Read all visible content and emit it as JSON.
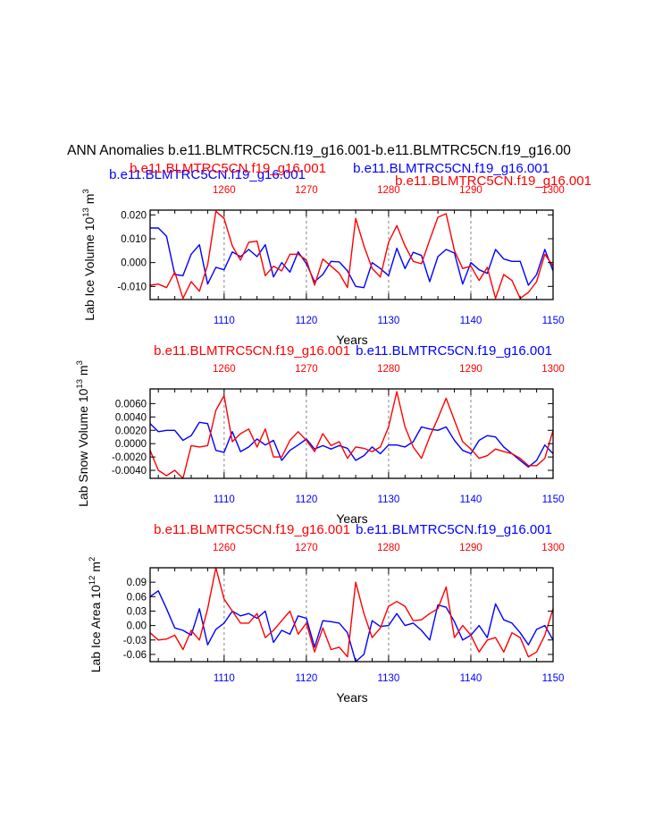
{
  "figure": {
    "title": "ANN Anomalies b.e11.BLMTRC5CN.f19_g16.001-b.e11.BLMTRC5CN.f19_g16.00"
  },
  "colors": {
    "series_a": "#0000ff",
    "series_b": "#ff0000",
    "axis": "#000000",
    "grid": "#9a9a9a"
  },
  "chart_data": [
    {
      "type": "line",
      "ylabel": "Lab Ice Volume 10",
      "ylabel_exp": "13",
      "ylabel_unit": " m",
      "ylabel_unit_exp": "3",
      "xlabel": "Years",
      "bottom_axis_ticks": [
        "1110",
        "1120",
        "1130",
        "1140",
        "1150"
      ],
      "top_axis_ticks": [
        "1260",
        "1270",
        "1280",
        "1290",
        "1300"
      ],
      "top_titles": [
        "b.e11.BLMTRC5CN.f19_g16.001",
        "b.e11.BLMTRC5CN.f19_g16.001",
        "b.e11.BLMTRC5CN.f19_g16.001",
        "b.e11.BLMTRC5CN.f19_g16.001"
      ],
      "ylim": [
        -0.0155,
        0.022
      ],
      "yticks": [
        -0.01,
        0.0,
        0.01,
        0.02
      ],
      "ytick_labels": [
        "-0.010",
        "0.000",
        "0.010",
        "0.020"
      ],
      "xlim": [
        1101,
        1150
      ],
      "grid_x": [
        1110,
        1120,
        1130,
        1140
      ],
      "series": [
        {
          "name": "b.e11.BLMTRC5CN.f19_g16.001",
          "color": "#0000ff",
          "x": [
            1101,
            1102,
            1103,
            1104,
            1105,
            1106,
            1107,
            1108,
            1109,
            1110,
            1111,
            1112,
            1113,
            1114,
            1115,
            1116,
            1117,
            1118,
            1119,
            1120,
            1121,
            1122,
            1123,
            1124,
            1125,
            1126,
            1127,
            1128,
            1129,
            1130,
            1131,
            1132,
            1133,
            1134,
            1135,
            1136,
            1137,
            1138,
            1139,
            1140,
            1141,
            1142,
            1143,
            1144,
            1145,
            1146,
            1147,
            1148,
            1149,
            1150
          ],
          "values": [
            0.0145,
            0.0145,
            0.011,
            -0.005,
            -0.0055,
            0.0035,
            0.0075,
            -0.009,
            -0.002,
            -0.003,
            0.0045,
            0.0025,
            0.0055,
            0.0025,
            0.0075,
            -0.006,
            0.0,
            -0.004,
            0.0045,
            -0.0005,
            -0.008,
            -0.005,
            0.0005,
            0.0003,
            -0.0035,
            -0.01,
            -0.0105,
            0.0,
            -0.0025,
            -0.0055,
            0.006,
            -0.0025,
            0.0043,
            0.003,
            -0.008,
            0.0025,
            0.0055,
            0.004,
            -0.009,
            0.0,
            -0.003,
            -0.0045,
            0.0055,
            0.0015,
            0.0005,
            0.0005,
            -0.0095,
            -0.005,
            0.0055,
            -0.0035
          ]
        },
        {
          "name": "b.e11.BLMTRC5CN.f19_g16.001",
          "color": "#ff0000",
          "x": [
            1101,
            1102,
            1103,
            1104,
            1105,
            1106,
            1107,
            1108,
            1109,
            1110,
            1111,
            1112,
            1113,
            1114,
            1115,
            1116,
            1117,
            1118,
            1119,
            1120,
            1121,
            1122,
            1123,
            1124,
            1125,
            1126,
            1127,
            1128,
            1129,
            1130,
            1131,
            1132,
            1133,
            1134,
            1135,
            1136,
            1137,
            1138,
            1139,
            1140,
            1141,
            1142,
            1143,
            1144,
            1145,
            1146,
            1147,
            1148,
            1149,
            1150
          ],
          "values": [
            -0.0095,
            -0.009,
            -0.0105,
            -0.004,
            -0.015,
            -0.008,
            -0.012,
            -0.001,
            0.0215,
            0.0185,
            0.007,
            0.001,
            0.0085,
            0.009,
            -0.0055,
            -0.0015,
            -0.0035,
            0.0035,
            0.0035,
            0.001,
            -0.0095,
            0.0015,
            -0.0015,
            -0.0045,
            -0.0105,
            0.0185,
            0.007,
            -0.0025,
            -0.006,
            0.0085,
            0.0155,
            0.007,
            0.0005,
            -0.0005,
            0.0095,
            0.019,
            0.0205,
            0.005,
            -0.0025,
            -0.0015,
            -0.0075,
            -0.002,
            -0.015,
            -0.005,
            -0.0075,
            -0.015,
            -0.0125,
            -0.008,
            0.0035,
            -0.0015
          ]
        }
      ]
    },
    {
      "type": "line",
      "ylabel": "Lab Snow Volume 10",
      "ylabel_exp": "13",
      "ylabel_unit": " m",
      "ylabel_unit_exp": "3",
      "xlabel": "Years",
      "bottom_axis_ticks": [
        "1110",
        "1120",
        "1130",
        "1140",
        "1150"
      ],
      "top_axis_ticks": [
        "1260",
        "1270",
        "1280",
        "1290",
        "1300"
      ],
      "top_titles": [
        "b.e11.BLMTRC5CN.f19_g16.001",
        "b.e11.BLMTRC5CN.f19_g16.001"
      ],
      "ylim": [
        -0.0052,
        0.0082
      ],
      "yticks": [
        -0.004,
        -0.002,
        0.0,
        0.002,
        0.004,
        0.006
      ],
      "ytick_labels": [
        "-0.0040",
        "-0.0020",
        "0.0000",
        "0.0020",
        "0.0040",
        "0.0060"
      ],
      "xlim": [
        1101,
        1150
      ],
      "grid_x": [
        1110,
        1120,
        1130,
        1140
      ],
      "series": [
        {
          "name": "b.e11.BLMTRC5CN.f19_g16.001",
          "color": "#0000ff",
          "x": [
            1101,
            1102,
            1103,
            1104,
            1105,
            1106,
            1107,
            1108,
            1109,
            1110,
            1111,
            1112,
            1113,
            1114,
            1115,
            1116,
            1117,
            1118,
            1119,
            1120,
            1121,
            1122,
            1123,
            1124,
            1125,
            1126,
            1127,
            1128,
            1129,
            1130,
            1131,
            1132,
            1133,
            1134,
            1135,
            1136,
            1137,
            1138,
            1139,
            1140,
            1141,
            1142,
            1143,
            1144,
            1145,
            1146,
            1147,
            1148,
            1149,
            1150
          ],
          "values": [
            0.003,
            0.0018,
            0.002,
            0.002,
            0.0005,
            0.0012,
            0.0032,
            0.003,
            -0.001,
            -0.0013,
            0.0018,
            -0.0012,
            -0.0005,
            0.0007,
            -0.0002,
            0.0005,
            -0.0025,
            -0.001,
            -0.0002,
            0.0007,
            -0.0008,
            -0.0003,
            -0.0008,
            -0.0003,
            -0.0007,
            -0.0025,
            -0.0018,
            -0.0005,
            -0.0015,
            -0.0002,
            -0.0002,
            -0.0005,
            0.0003,
            0.0025,
            0.0022,
            0.002,
            0.0025,
            0.0005,
            -0.001,
            -0.0015,
            0.0005,
            0.0012,
            0.001,
            -0.0005,
            -0.0015,
            -0.0025,
            -0.0035,
            -0.0025,
            -0.0002,
            -0.0015
          ]
        },
        {
          "name": "b.e11.BLMTRC5CN.f19_g16.001",
          "color": "#ff0000",
          "x": [
            1101,
            1102,
            1103,
            1104,
            1105,
            1106,
            1107,
            1108,
            1109,
            1110,
            1111,
            1112,
            1113,
            1114,
            1115,
            1116,
            1117,
            1118,
            1119,
            1120,
            1121,
            1122,
            1123,
            1124,
            1125,
            1126,
            1127,
            1128,
            1129,
            1130,
            1131,
            1132,
            1133,
            1134,
            1135,
            1136,
            1137,
            1138,
            1139,
            1140,
            1141,
            1142,
            1143,
            1144,
            1145,
            1146,
            1147,
            1148,
            1149,
            1150
          ],
          "values": [
            -0.001,
            -0.004,
            -0.0048,
            -0.004,
            -0.0052,
            -0.0003,
            -0.0005,
            -0.0003,
            0.005,
            0.0072,
            0.0003,
            0.0015,
            0.0022,
            -0.0005,
            0.0022,
            -0.002,
            -0.002,
            0.0005,
            0.0018,
            0.0005,
            -0.0012,
            0.0015,
            -0.0003,
            0.0003,
            -0.0022,
            -0.0005,
            -0.0007,
            -0.0012,
            -0.0005,
            0.0025,
            0.0078,
            0.0025,
            -0.0005,
            -0.0022,
            0.001,
            0.0038,
            0.0068,
            0.0035,
            0.0003,
            -0.0008,
            -0.0022,
            -0.0018,
            -0.0008,
            -0.0012,
            -0.0015,
            -0.0022,
            -0.0033,
            -0.0033,
            -0.0022,
            0.002
          ]
        }
      ]
    },
    {
      "type": "line",
      "ylabel": "Lab Ice Area 10",
      "ylabel_exp": "12",
      "ylabel_unit": " m",
      "ylabel_unit_exp": "2",
      "xlabel": "Years",
      "bottom_axis_ticks": [
        "1110",
        "1120",
        "1130",
        "1140",
        "1150"
      ],
      "top_axis_ticks": [
        "1260",
        "1270",
        "1280",
        "1290",
        "1300"
      ],
      "top_titles": [
        "b.e11.BLMTRC5CN.f19_g16.001",
        "b.e11.BLMTRC5CN.f19_g16.001"
      ],
      "ylim": [
        -0.075,
        0.12
      ],
      "yticks": [
        -0.06,
        -0.03,
        0.0,
        0.03,
        0.06,
        0.09
      ],
      "ytick_labels": [
        "-0.06",
        "-0.03",
        "0.00",
        "0.03",
        "0.06",
        "0.09"
      ],
      "xlim": [
        1101,
        1150
      ],
      "grid_x": [
        1110,
        1120,
        1130,
        1140
      ],
      "series": [
        {
          "name": "b.e11.BLMTRC5CN.f19_g16.001",
          "color": "#0000ff",
          "x": [
            1101,
            1102,
            1103,
            1104,
            1105,
            1106,
            1107,
            1108,
            1109,
            1110,
            1111,
            1112,
            1113,
            1114,
            1115,
            1116,
            1117,
            1118,
            1119,
            1120,
            1121,
            1122,
            1123,
            1124,
            1125,
            1126,
            1127,
            1128,
            1129,
            1130,
            1131,
            1132,
            1133,
            1134,
            1135,
            1136,
            1137,
            1138,
            1139,
            1140,
            1141,
            1142,
            1143,
            1144,
            1145,
            1146,
            1147,
            1148,
            1149,
            1150
          ],
          "values": [
            0.06,
            0.072,
            0.035,
            -0.005,
            -0.01,
            -0.02,
            0.035,
            -0.04,
            -0.008,
            0.005,
            0.03,
            0.02,
            0.025,
            0.015,
            0.03,
            -0.035,
            -0.01,
            -0.018,
            0.02,
            0.015,
            -0.045,
            0.01,
            0.008,
            0.005,
            -0.015,
            -0.075,
            -0.06,
            0.01,
            -0.002,
            0.0,
            0.025,
            0.0,
            0.005,
            -0.01,
            -0.03,
            0.043,
            0.038,
            0.008,
            -0.03,
            -0.02,
            0.0,
            -0.025,
            0.045,
            0.012,
            0.005,
            -0.015,
            -0.04,
            -0.008,
            0.0,
            -0.03
          ]
        },
        {
          "name": "b.e11.BLMTRC5CN.f19_g16.001",
          "color": "#ff0000",
          "x": [
            1101,
            1102,
            1103,
            1104,
            1105,
            1106,
            1107,
            1108,
            1109,
            1110,
            1111,
            1112,
            1113,
            1114,
            1115,
            1116,
            1117,
            1118,
            1119,
            1120,
            1121,
            1122,
            1123,
            1124,
            1125,
            1126,
            1127,
            1128,
            1129,
            1130,
            1131,
            1132,
            1133,
            1134,
            1135,
            1136,
            1137,
            1138,
            1139,
            1140,
            1141,
            1142,
            1143,
            1144,
            1145,
            1146,
            1147,
            1148,
            1149,
            1150
          ],
          "values": [
            -0.015,
            -0.03,
            -0.028,
            -0.02,
            -0.05,
            -0.01,
            -0.03,
            0.035,
            0.12,
            0.055,
            0.03,
            0.005,
            0.005,
            0.025,
            -0.025,
            -0.01,
            0.01,
            0.03,
            -0.018,
            0.005,
            -0.055,
            -0.005,
            -0.05,
            -0.045,
            -0.065,
            0.09,
            0.025,
            -0.025,
            -0.005,
            0.04,
            0.05,
            0.04,
            0.01,
            0.012,
            0.025,
            0.035,
            0.08,
            -0.025,
            0.0,
            -0.02,
            -0.055,
            -0.03,
            -0.025,
            -0.055,
            -0.015,
            -0.025,
            -0.065,
            -0.055,
            -0.02,
            0.035
          ]
        }
      ]
    }
  ]
}
